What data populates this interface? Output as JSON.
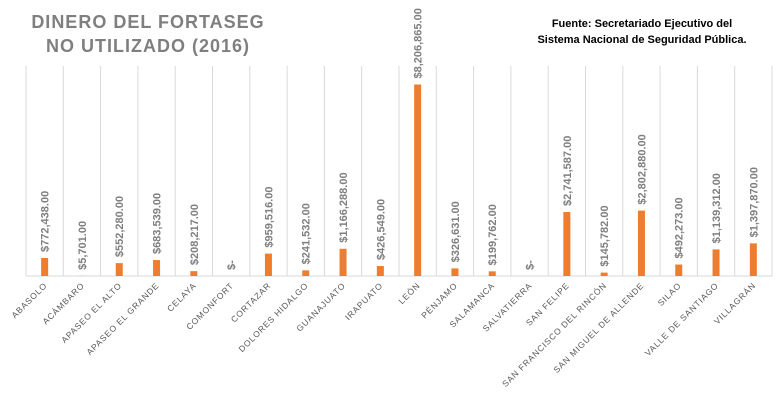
{
  "chart_data": {
    "type": "bar",
    "title": [
      "DINERO DEL FORTASEG",
      "NO UTILIZADO (2016)"
    ],
    "source": [
      "Fuente: Secretariado Ejecutivo del",
      "Sistema Nacional de Seguridad Pública."
    ],
    "xlabel": "",
    "ylabel": "",
    "ylim": [
      0,
      9000000
    ],
    "grid": "vertical",
    "legend": "none",
    "bar_color": "#ed7d31",
    "categories": [
      "ABASOLO",
      "ACÁMBARO",
      "APASEO EL ALTO",
      "APASEO EL GRANDE",
      "CELAYA",
      "COMONFORT",
      "CORTAZAR",
      "DOLORES HIDALGO",
      "GUANAJUATO",
      "IRAPUATO",
      "LEÓN",
      "PÉNJAMO",
      "SALAMANCA",
      "SALVATIERRA",
      "SAN FELIPE",
      "SAN FRANCISCO DEL RINCÓN",
      "SAN MIGUEL DE ALLENDE",
      "SILAO",
      "VALLE DE SANTIAGO",
      "VILLAGRÁN"
    ],
    "values": [
      772438,
      5701,
      552280,
      683539,
      208217,
      0,
      959516,
      241532,
      1166288,
      426549,
      8206865,
      326631,
      199762,
      0,
      2741587,
      145782,
      2802880,
      492273,
      1139312,
      1397870
    ],
    "data_labels": [
      "$772,438.00",
      "$5,701.00",
      "$552,280.00",
      "$683,539.00",
      "$208,217.00",
      "$-",
      "$959,516.00",
      "$241,532.00",
      "$1,166,288.00",
      "$426,549.00",
      "$8,206,865.00",
      "$326,631.00",
      "$199,762.00",
      "$-",
      "$2,741,587.00",
      "$145,782.00",
      "$2,802,880.00",
      "$492,273.00",
      "$1,139,312.00",
      "$1,397,870.00"
    ]
  }
}
